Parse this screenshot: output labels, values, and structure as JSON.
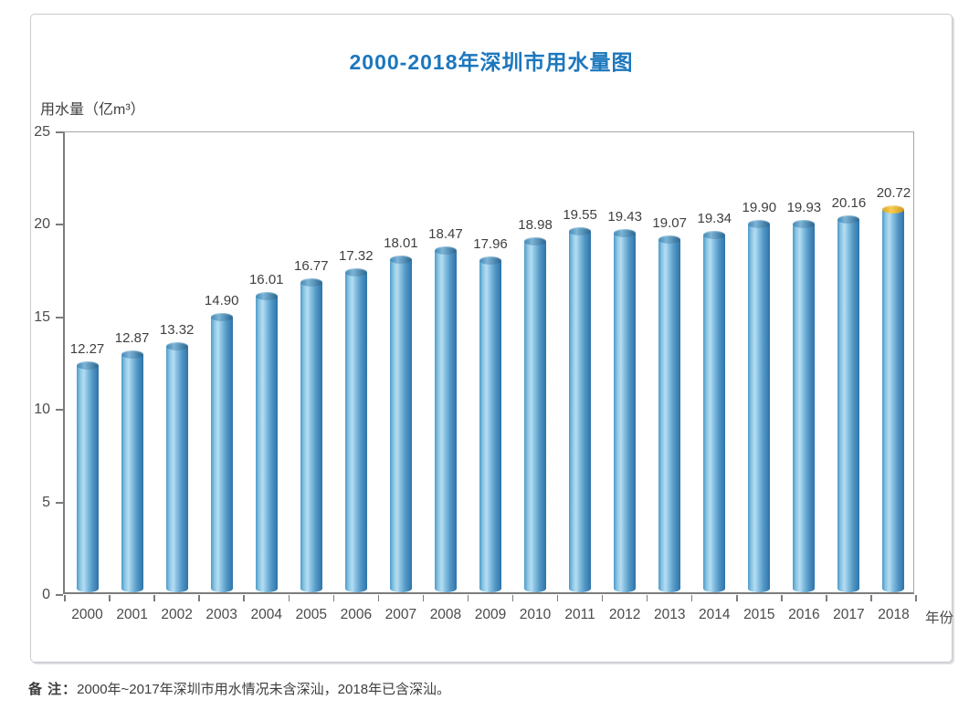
{
  "chart": {
    "title": "2000-2018年深圳市用水量图",
    "y_axis_title": "用水量（亿m³）",
    "x_axis_title": "年份"
  },
  "note": {
    "label": "备 注：",
    "text": "2000年~2017年深圳市用水情况未含深汕，2018年已含深汕。"
  },
  "chart_data": {
    "type": "bar",
    "title": "2000-2018年深圳市用水量图",
    "xlabel": "年份",
    "ylabel": "用水量（亿m³）",
    "categories": [
      "2000",
      "2001",
      "2002",
      "2003",
      "2004",
      "2005",
      "2006",
      "2007",
      "2008",
      "2009",
      "2010",
      "2011",
      "2012",
      "2013",
      "2014",
      "2015",
      "2016",
      "2017",
      "2018"
    ],
    "values": [
      12.27,
      12.87,
      13.32,
      14.9,
      16.01,
      16.77,
      17.32,
      18.01,
      18.47,
      17.96,
      18.98,
      19.55,
      19.43,
      19.07,
      19.34,
      19.9,
      19.93,
      20.16,
      20.72
    ],
    "value_labels": [
      "12.27",
      "12.87",
      "13.32",
      "14.90",
      "16.01",
      "16.77",
      "17.32",
      "18.01",
      "18.47",
      "17.96",
      "18.98",
      "19.55",
      "19.43",
      "19.07",
      "19.34",
      "19.90",
      "19.93",
      "20.16",
      "20.72"
    ],
    "ylim": [
      0,
      25
    ],
    "yticks": [
      0,
      5,
      10,
      15,
      20,
      25
    ],
    "grid": false,
    "legend": false,
    "colors": {
      "title_blue": "#1c77bd",
      "bar_light": "#b5ddf2",
      "bar_dark": "#2d74aa",
      "cap_blue": "#3f86b4",
      "cap_gold_2018": "#e8b32e",
      "axis_gray": "#7c7c7c",
      "text_gray": "#3f3f3f"
    },
    "highlight": {
      "category": "2018",
      "cap_color": "gold"
    }
  }
}
